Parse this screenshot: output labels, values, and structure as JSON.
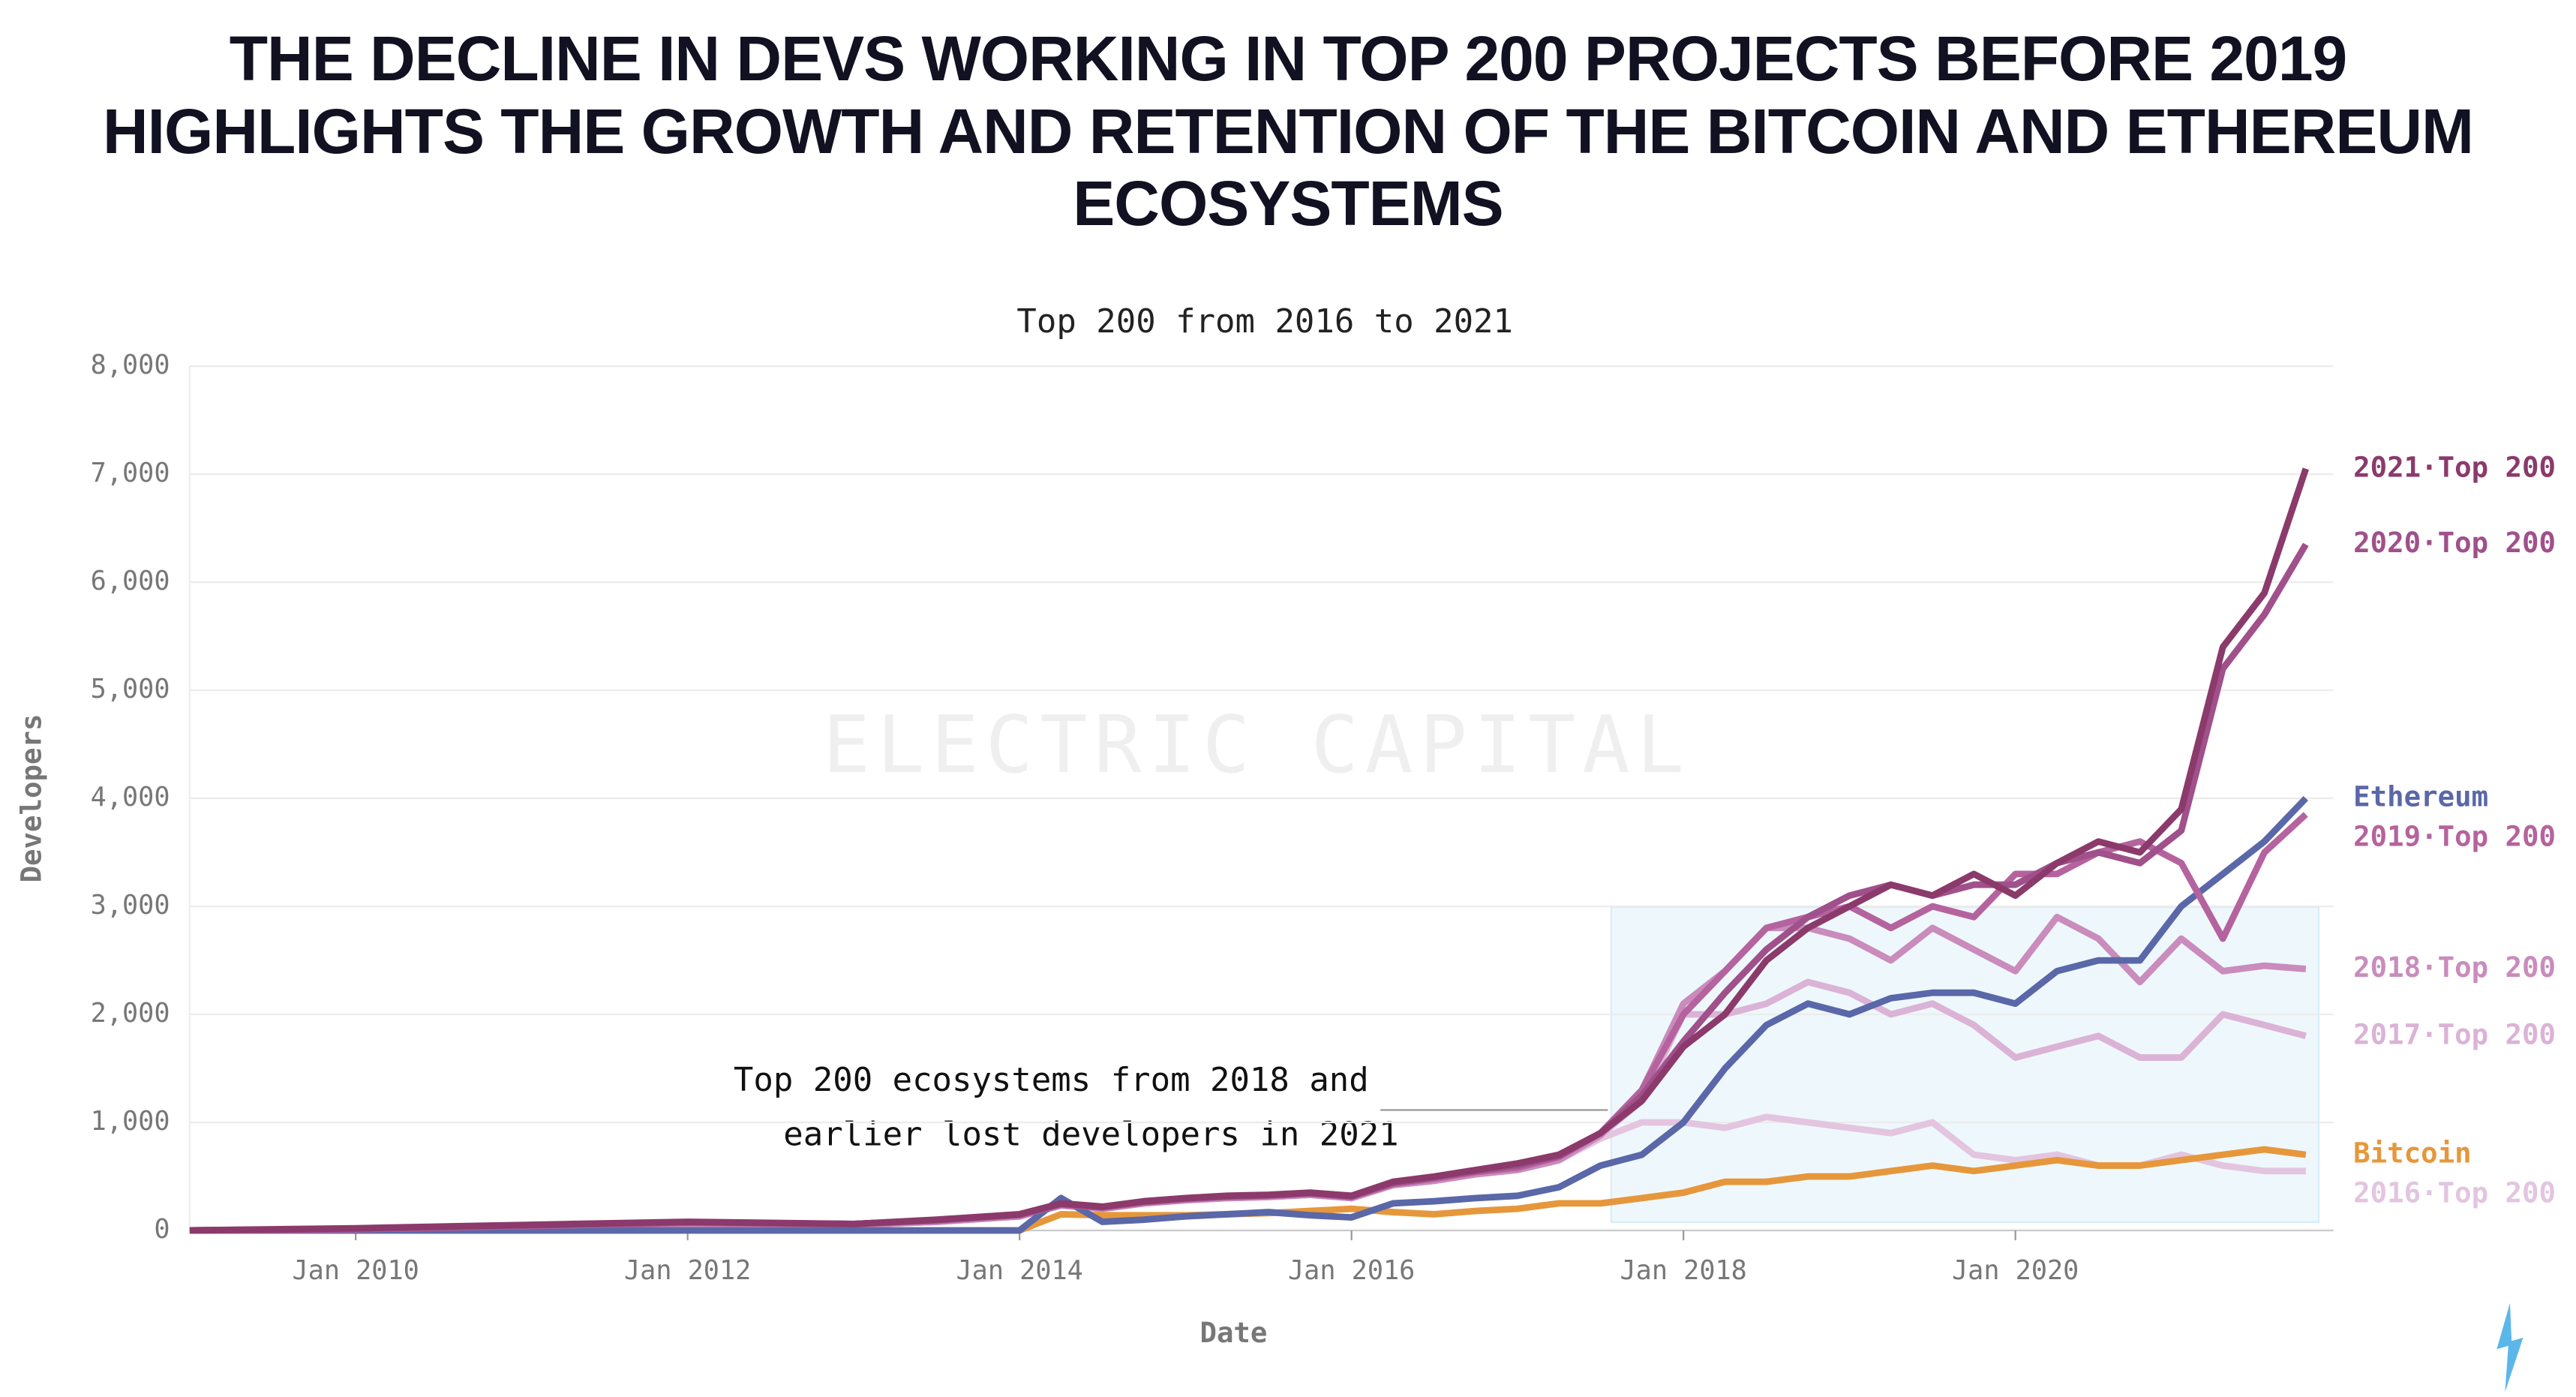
{
  "title": "The decline in devs working in top 200 projects before 2019 highlights the growth and retention of the Bitcoin and Ethereum ecosystems",
  "chart_data": {
    "type": "line",
    "title": "Top 200 from 2016 to 2021",
    "x_label": "Date",
    "y_label": "Developers",
    "watermark": "ELECTRIC CAPITAL",
    "annotation": [
      "Top 200  ecosystems from 2018 and",
      "earlier lost developers in 2021"
    ],
    "x": [
      "2009-01",
      "2010-01",
      "2011-01",
      "2012-01",
      "2013-01",
      "2013-07",
      "2014-01",
      "2014-04",
      "2014-07",
      "2014-10",
      "2015-01",
      "2015-04",
      "2015-07",
      "2015-10",
      "2016-01",
      "2016-04",
      "2016-07",
      "2016-10",
      "2017-01",
      "2017-04",
      "2017-07",
      "2017-10",
      "2018-01",
      "2018-04",
      "2018-07",
      "2018-10",
      "2019-01",
      "2019-04",
      "2019-07",
      "2019-10",
      "2020-01",
      "2020-04",
      "2020-07",
      "2020-10",
      "2021-01",
      "2021-04",
      "2021-07",
      "2021-10"
    ],
    "xlim": [
      "2009-01",
      "2021-12"
    ],
    "xticks": [
      {
        "value": "2010-01",
        "label": "Jan 2010"
      },
      {
        "value": "2012-01",
        "label": "Jan 2012"
      },
      {
        "value": "2014-01",
        "label": "Jan 2014"
      },
      {
        "value": "2016-01",
        "label": "Jan 2016"
      },
      {
        "value": "2018-01",
        "label": "Jan 2018"
      },
      {
        "value": "2020-01",
        "label": "Jan 2020"
      }
    ],
    "ylim": [
      0,
      8000
    ],
    "yticks": [
      0,
      {
        "value": 1000,
        "label": "1,000"
      },
      {
        "value": 2000,
        "label": "2,000"
      },
      {
        "value": 3000,
        "label": "3,000"
      },
      {
        "value": 4000,
        "label": "4,000"
      },
      {
        "value": 5000,
        "label": "5,000"
      },
      {
        "value": 6000,
        "label": "6,000"
      },
      {
        "value": 7000,
        "label": "7,000"
      },
      {
        "value": 8000,
        "label": "8,000"
      }
    ],
    "grid": true,
    "series": [
      {
        "name": "2016·Top 200",
        "color": "#e3c5e0",
        "values": [
          0,
          10,
          30,
          60,
          50,
          80,
          130,
          230,
          200,
          250,
          280,
          300,
          310,
          330,
          300,
          420,
          460,
          520,
          560,
          650,
          850,
          1000,
          1000,
          950,
          1050,
          1000,
          950,
          900,
          1000,
          700,
          650,
          700,
          600,
          600,
          700,
          600,
          550,
          550
        ]
      },
      {
        "name": "2017·Top 200",
        "color": "#dbb3d6",
        "values": [
          0,
          10,
          30,
          60,
          50,
          80,
          130,
          230,
          200,
          250,
          280,
          300,
          310,
          330,
          300,
          420,
          460,
          520,
          560,
          650,
          880,
          1200,
          2000,
          2000,
          2100,
          2300,
          2200,
          2000,
          2100,
          1900,
          1600,
          1700,
          1800,
          1600,
          1600,
          2000,
          1900,
          1800
        ]
      },
      {
        "name": "2018·Top 200",
        "color": "#c98cbc",
        "values": [
          0,
          10,
          30,
          60,
          50,
          80,
          130,
          230,
          200,
          250,
          280,
          300,
          310,
          330,
          300,
          420,
          460,
          520,
          560,
          650,
          880,
          1300,
          2100,
          2400,
          2800,
          2800,
          2700,
          2500,
          2800,
          2600,
          2400,
          2900,
          2700,
          2300,
          2700,
          2400,
          2450,
          2420
        ]
      },
      {
        "name": "Bitcoin",
        "color": "#e6973b",
        "values": [
          0,
          0,
          0,
          0,
          0,
          0,
          0,
          150,
          140,
          140,
          140,
          150,
          160,
          180,
          200,
          170,
          150,
          180,
          200,
          250,
          250,
          300,
          350,
          450,
          450,
          500,
          500,
          550,
          600,
          550,
          600,
          650,
          600,
          600,
          650,
          700,
          750,
          700
        ]
      },
      {
        "name": "Ethereum",
        "color": "#5a67a8",
        "values": [
          0,
          0,
          0,
          0,
          0,
          0,
          0,
          300,
          80,
          100,
          130,
          150,
          170,
          140,
          120,
          250,
          270,
          300,
          320,
          400,
          600,
          700,
          1000,
          1500,
          1900,
          2100,
          2000,
          2150,
          2200,
          2200,
          2100,
          2400,
          2500,
          2500,
          3000,
          3300,
          3600,
          4000
        ]
      },
      {
        "name": "2019·Top 200",
        "color": "#b5639e",
        "values": [
          0,
          10,
          40,
          70,
          60,
          90,
          140,
          240,
          210,
          260,
          290,
          310,
          320,
          340,
          310,
          430,
          480,
          540,
          580,
          680,
          900,
          1300,
          2000,
          2400,
          2800,
          2900,
          3000,
          2800,
          3000,
          2900,
          3300,
          3300,
          3500,
          3600,
          3400,
          2700,
          3500,
          3850
        ]
      },
      {
        "name": "2020·Top 200",
        "color": "#a0508a",
        "values": [
          0,
          15,
          45,
          75,
          60,
          95,
          145,
          245,
          215,
          265,
          295,
          315,
          325,
          345,
          315,
          440,
          490,
          550,
          600,
          690,
          900,
          1250,
          1750,
          2200,
          2600,
          2900,
          3100,
          3200,
          3100,
          3200,
          3200,
          3400,
          3500,
          3400,
          3700,
          5200,
          5700,
          6350
        ]
      },
      {
        "name": "2021·Top 200",
        "color": "#8b3a6b",
        "values": [
          0,
          20,
          50,
          80,
          60,
          100,
          150,
          250,
          220,
          270,
          300,
          320,
          330,
          350,
          320,
          450,
          500,
          560,
          620,
          700,
          900,
          1200,
          1700,
          2000,
          2500,
          2800,
          3000,
          3200,
          3100,
          3300,
          3100,
          3400,
          3600,
          3500,
          3900,
          5400,
          5900,
          7050
        ]
      }
    ]
  }
}
